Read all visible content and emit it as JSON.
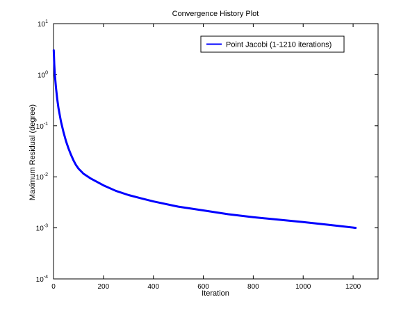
{
  "chart_data": {
    "type": "line",
    "title": "Convergence History Plot",
    "xlabel": "Iteration",
    "ylabel": "Maximum Residual (degree)",
    "xlim": [
      0,
      1300
    ],
    "ylim": [
      0.0001,
      10
    ],
    "yscale": "log",
    "grid": false,
    "legend_position": "top-right",
    "x_ticks": [
      0,
      200,
      400,
      600,
      800,
      1000,
      1200
    ],
    "x_tick_labels": [
      "0",
      "200",
      "400",
      "600",
      "800",
      "1000",
      "1200"
    ],
    "y_ticks": [
      0.0001,
      0.001,
      0.01,
      0.1,
      1,
      10
    ],
    "y_tick_labels": [
      {
        "base": "10",
        "exp": "-4"
      },
      {
        "base": "10",
        "exp": "-3"
      },
      {
        "base": "10",
        "exp": "-2"
      },
      {
        "base": "10",
        "exp": "-1"
      },
      {
        "base": "10",
        "exp": "0"
      },
      {
        "base": "10",
        "exp": "1"
      }
    ],
    "series": [
      {
        "name": "Point Jacobi (1-1210 iterations)",
        "color": "#0000ff",
        "x": [
          1,
          3,
          5,
          10,
          15,
          20,
          30,
          40,
          50,
          60,
          70,
          80,
          90,
          100,
          120,
          150,
          200,
          250,
          300,
          350,
          400,
          500,
          600,
          700,
          800,
          900,
          1000,
          1100,
          1210
        ],
        "y": [
          3.0,
          1.6,
          1.05,
          0.55,
          0.33,
          0.22,
          0.12,
          0.075,
          0.05,
          0.036,
          0.027,
          0.021,
          0.017,
          0.0145,
          0.0115,
          0.0092,
          0.0068,
          0.0053,
          0.0044,
          0.0038,
          0.0033,
          0.0026,
          0.0022,
          0.00185,
          0.00162,
          0.00145,
          0.0013,
          0.00115,
          0.001
        ]
      }
    ]
  },
  "colors": {
    "axis": "#000000",
    "background": "#ffffff",
    "series": "#0000ff"
  }
}
